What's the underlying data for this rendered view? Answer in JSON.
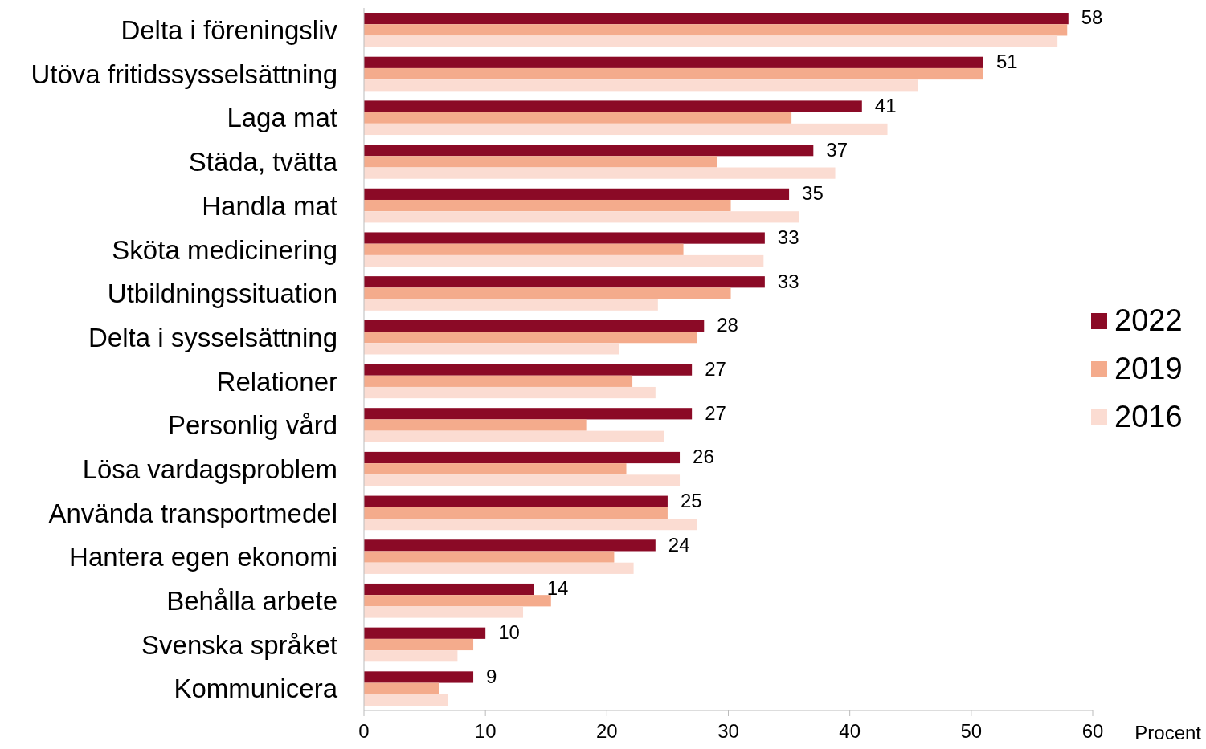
{
  "chart_data": {
    "type": "bar",
    "orientation": "horizontal",
    "xlabel": "Procent",
    "categories": [
      "Delta i föreningsliv",
      "Utöva fritidssysselsättning",
      "Laga mat",
      "Städa, tvätta",
      "Handla mat",
      "Sköta medicinering",
      "Utbildningssituation",
      "Delta i sysselsättning",
      "Relationer",
      "Personlig vård",
      "Lösa vardagsproblem",
      "Använda transportmedel",
      "Hantera egen ekonomi",
      "Behålla arbete",
      "Svenska språket",
      "Kommunicera"
    ],
    "series": [
      {
        "name": "2022",
        "color": "#8b0a26",
        "values": [
          58,
          51,
          41,
          37,
          35,
          33,
          33,
          28,
          27,
          27,
          26,
          25,
          24,
          14,
          10,
          9
        ],
        "value_labels": [
          "58",
          "51",
          "41",
          "37",
          "35",
          "33",
          "33",
          "28",
          "27",
          "27",
          "26",
          "25",
          "24",
          "14",
          "10",
          "9"
        ]
      },
      {
        "name": "2019",
        "color": "#f4ab8c",
        "values": [
          57.9,
          51.0,
          35.2,
          29.1,
          30.2,
          26.3,
          30.2,
          27.4,
          22.1,
          18.3,
          21.6,
          25.0,
          20.6,
          15.4,
          9.0,
          6.2
        ]
      },
      {
        "name": "2016",
        "color": "#fbdcd2",
        "values": [
          57.1,
          45.6,
          43.1,
          38.8,
          35.8,
          32.9,
          24.2,
          21.0,
          24.0,
          24.7,
          26.0,
          27.4,
          22.2,
          13.1,
          7.7,
          6.9
        ]
      }
    ],
    "xlim": [
      0,
      60
    ],
    "xticks": [
      0,
      10,
      20,
      30,
      40,
      50,
      60
    ],
    "grid": false,
    "legend": "right"
  }
}
